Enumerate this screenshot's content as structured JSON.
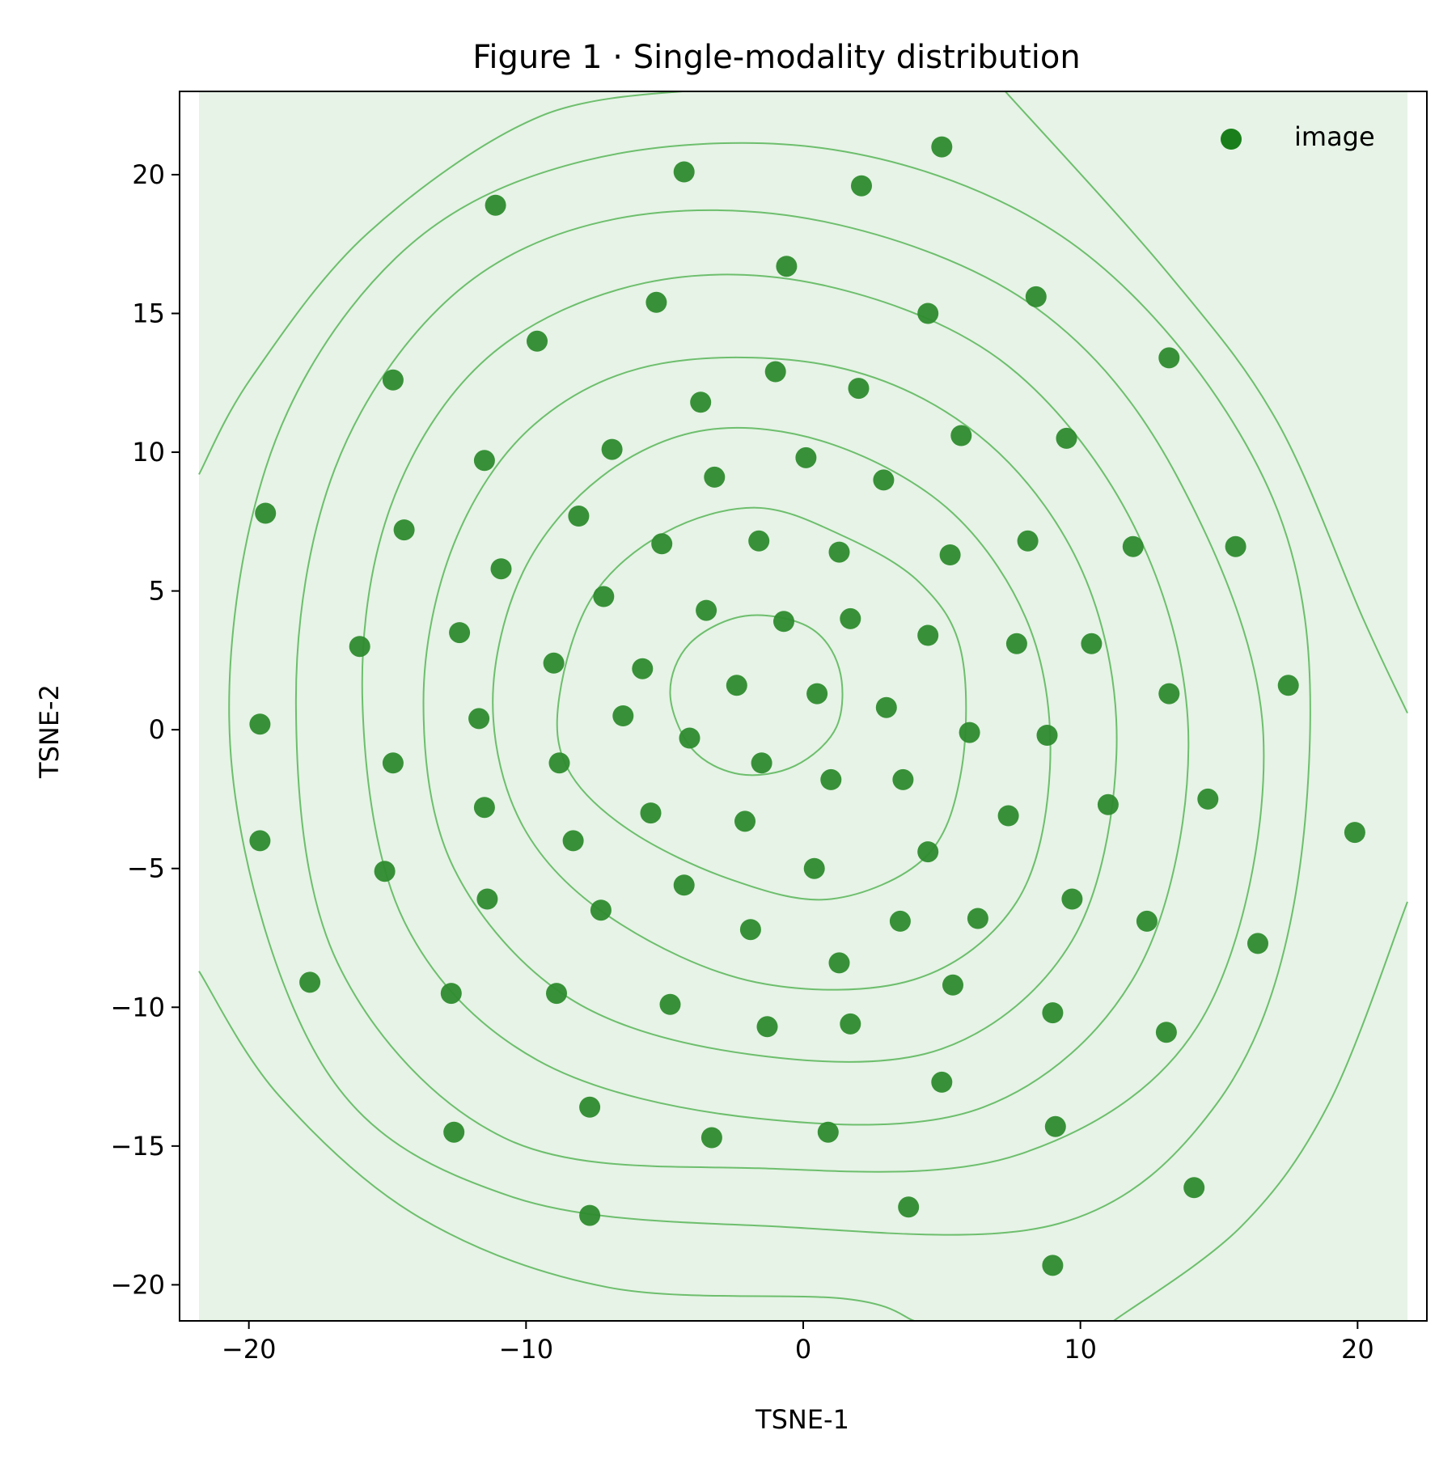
{
  "chart_data": {
    "type": "scatter",
    "title": "Figure 1  ·  Single-modality distribution",
    "xlabel": "TSNE-1",
    "ylabel": "TSNE-2",
    "xlim": [
      -22.5,
      22.5
    ],
    "ylim": [
      -21.3,
      23.0
    ],
    "xticks": [
      -20,
      -10,
      0,
      10,
      20
    ],
    "xtick_labels": [
      "−20",
      "−10",
      "0",
      "10",
      "20"
    ],
    "yticks": [
      -20,
      -15,
      -10,
      -5,
      0,
      5,
      10,
      15,
      20
    ],
    "ytick_labels": [
      "−20",
      "−15",
      "−10",
      "−5",
      "0",
      "5",
      "10",
      "15",
      "20"
    ],
    "grid": false,
    "legend_position": "top-right",
    "density_background": true,
    "density_extent_x": [
      -21.8,
      21.8
    ],
    "colors": {
      "point": "#2e8b2e",
      "legend_marker": "#1a7f1a",
      "density_fill": "#e6f3e6",
      "contour": "#5fb85f"
    },
    "series": [
      {
        "name": "image",
        "points": [
          [
            -19.4,
            7.8
          ],
          [
            -19.6,
            0.2
          ],
          [
            -19.6,
            -4.0
          ],
          [
            -17.8,
            -9.1
          ],
          [
            -16.0,
            3.0
          ],
          [
            -14.8,
            12.6
          ],
          [
            -14.8,
            -1.2
          ],
          [
            -15.1,
            -5.1
          ],
          [
            -14.4,
            7.2
          ],
          [
            -12.7,
            -9.5
          ],
          [
            -12.6,
            -14.5
          ],
          [
            -12.4,
            3.5
          ],
          [
            -11.1,
            18.9
          ],
          [
            -11.5,
            9.7
          ],
          [
            -11.7,
            0.4
          ],
          [
            -11.5,
            -2.8
          ],
          [
            -11.4,
            -6.1
          ],
          [
            -10.9,
            5.8
          ],
          [
            -9.6,
            14.0
          ],
          [
            -9.0,
            2.4
          ],
          [
            -8.8,
            -1.2
          ],
          [
            -8.9,
            -9.5
          ],
          [
            -8.3,
            -4.0
          ],
          [
            -8.1,
            7.7
          ],
          [
            -7.7,
            -13.6
          ],
          [
            -7.7,
            -17.5
          ],
          [
            -7.2,
            4.8
          ],
          [
            -7.3,
            -6.5
          ],
          [
            -6.9,
            10.1
          ],
          [
            -6.5,
            0.5
          ],
          [
            -5.8,
            2.2
          ],
          [
            -5.5,
            -3.0
          ],
          [
            -5.3,
            15.4
          ],
          [
            -5.1,
            6.7
          ],
          [
            -4.8,
            -9.9
          ],
          [
            -4.3,
            20.1
          ],
          [
            -4.3,
            -5.6
          ],
          [
            -4.1,
            -0.3
          ],
          [
            -3.7,
            11.8
          ],
          [
            -3.5,
            4.3
          ],
          [
            -3.2,
            9.1
          ],
          [
            -3.3,
            -14.7
          ],
          [
            -2.4,
            1.6
          ],
          [
            -2.1,
            -3.3
          ],
          [
            -1.9,
            -7.2
          ],
          [
            -1.6,
            6.8
          ],
          [
            -1.5,
            -1.2
          ],
          [
            -1.3,
            -10.7
          ],
          [
            -1.0,
            12.9
          ],
          [
            -0.6,
            16.7
          ],
          [
            -0.7,
            3.9
          ],
          [
            0.1,
            9.8
          ],
          [
            0.4,
            -5.0
          ],
          [
            0.5,
            1.3
          ],
          [
            0.9,
            -14.5
          ],
          [
            1.0,
            -1.8
          ],
          [
            1.3,
            -8.4
          ],
          [
            1.3,
            6.4
          ],
          [
            1.7,
            4.0
          ],
          [
            1.7,
            -10.6
          ],
          [
            2.1,
            19.6
          ],
          [
            2.0,
            12.3
          ],
          [
            2.9,
            9.0
          ],
          [
            3.0,
            0.8
          ],
          [
            3.5,
            -6.9
          ],
          [
            3.6,
            -1.8
          ],
          [
            3.8,
            -17.2
          ],
          [
            4.5,
            15.0
          ],
          [
            4.5,
            3.4
          ],
          [
            4.5,
            -4.4
          ],
          [
            5.0,
            21.0
          ],
          [
            5.0,
            -12.7
          ],
          [
            5.3,
            6.3
          ],
          [
            5.4,
            -9.2
          ],
          [
            5.7,
            10.6
          ],
          [
            6.0,
            -0.1
          ],
          [
            6.3,
            -6.8
          ],
          [
            7.4,
            -3.1
          ],
          [
            7.7,
            3.1
          ],
          [
            8.1,
            6.8
          ],
          [
            8.4,
            15.6
          ],
          [
            8.8,
            -0.2
          ],
          [
            9.0,
            -10.2
          ],
          [
            9.1,
            -14.3
          ],
          [
            9.5,
            10.5
          ],
          [
            9.0,
            -19.3
          ],
          [
            9.7,
            -6.1
          ],
          [
            10.4,
            3.1
          ],
          [
            11.0,
            -2.7
          ],
          [
            11.9,
            6.6
          ],
          [
            12.4,
            -6.9
          ],
          [
            13.1,
            -10.9
          ],
          [
            13.2,
            13.4
          ],
          [
            13.2,
            1.3
          ],
          [
            14.1,
            -16.5
          ],
          [
            14.6,
            -2.5
          ],
          [
            15.6,
            6.6
          ],
          [
            16.4,
            -7.7
          ],
          [
            17.5,
            1.6
          ],
          [
            19.9,
            -3.7
          ]
        ]
      }
    ],
    "contours": [
      [
        [
          -4.8,
          1.3
        ],
        [
          -4.1,
          3.1
        ],
        [
          -2.1,
          4.1
        ],
        [
          0.2,
          3.7
        ],
        [
          1.3,
          2.2
        ],
        [
          1.2,
          0.1
        ],
        [
          -0.3,
          -1.3
        ],
        [
          -2.3,
          -1.6
        ],
        [
          -4.0,
          -0.7
        ]
      ],
      [
        [
          -8.8,
          1.2
        ],
        [
          -7.6,
          4.8
        ],
        [
          -5.0,
          7.1
        ],
        [
          -1.7,
          8.0
        ],
        [
          1.4,
          7.0
        ],
        [
          4.2,
          5.3
        ],
        [
          5.7,
          2.8
        ],
        [
          5.7,
          -1.5
        ],
        [
          4.4,
          -4.6
        ],
        [
          1.0,
          -6.1
        ],
        [
          -2.6,
          -5.4
        ],
        [
          -6.3,
          -3.6
        ],
        [
          -8.5,
          -1.4
        ]
      ],
      [
        [
          -11.2,
          1.0
        ],
        [
          -10.1,
          5.7
        ],
        [
          -7.3,
          9.1
        ],
        [
          -3.5,
          10.8
        ],
        [
          1.0,
          10.3
        ],
        [
          5.4,
          7.8
        ],
        [
          8.2,
          3.6
        ],
        [
          8.9,
          -1.4
        ],
        [
          7.7,
          -6.2
        ],
        [
          4.0,
          -9.0
        ],
        [
          -1.7,
          -9.1
        ],
        [
          -6.9,
          -6.8
        ],
        [
          -10.1,
          -3.5
        ]
      ],
      [
        [
          -13.7,
          1.0
        ],
        [
          -12.6,
          6.7
        ],
        [
          -9.7,
          11.0
        ],
        [
          -5.1,
          13.2
        ],
        [
          1.5,
          13.0
        ],
        [
          6.7,
          10.3
        ],
        [
          10.2,
          5.4
        ],
        [
          11.3,
          -0.9
        ],
        [
          9.7,
          -7.6
        ],
        [
          5.0,
          -11.5
        ],
        [
          -1.9,
          -11.7
        ],
        [
          -8.4,
          -9.7
        ],
        [
          -12.6,
          -5.0
        ]
      ],
      [
        [
          -15.9,
          0.9
        ],
        [
          -14.9,
          8.0
        ],
        [
          -11.4,
          13.4
        ],
        [
          -5.7,
          16.1
        ],
        [
          0.8,
          16.0
        ],
        [
          7.4,
          13.1
        ],
        [
          12.1,
          7.0
        ],
        [
          13.9,
          -0.6
        ],
        [
          12.0,
          -8.8
        ],
        [
          6.5,
          -13.6
        ],
        [
          -1.7,
          -14.0
        ],
        [
          -9.6,
          -11.9
        ],
        [
          -14.4,
          -6.9
        ]
      ],
      [
        [
          -18.3,
          0.9
        ],
        [
          -16.9,
          9.4
        ],
        [
          -12.7,
          15.6
        ],
        [
          -6.8,
          18.4
        ],
        [
          0.8,
          18.3
        ],
        [
          8.4,
          15.2
        ],
        [
          13.5,
          9.1
        ],
        [
          16.6,
          -0.2
        ],
        [
          14.4,
          -10.4
        ],
        [
          7.8,
          -15.3
        ],
        [
          -1.6,
          -15.8
        ],
        [
          -10.8,
          -14.7
        ],
        [
          -16.8,
          -8.4
        ]
      ],
      [
        [
          -20.6,
          -1.5
        ],
        [
          -19.4,
          9.4
        ],
        [
          -14.7,
          17.0
        ],
        [
          -7.9,
          20.5
        ],
        [
          1.1,
          20.9
        ],
        [
          9.3,
          17.8
        ],
        [
          15.3,
          11.4
        ],
        [
          18.1,
          4.0
        ],
        [
          17.7,
          -6.3
        ],
        [
          14.9,
          -13.5
        ],
        [
          9.2,
          -17.8
        ],
        [
          -1.0,
          -17.9
        ],
        [
          -10.6,
          -16.8
        ],
        [
          -17.2,
          -12.3
        ]
      ],
      {
        "open": true,
        "pts": [
          [
            -21.8,
            9.2
          ],
          [
            -19.9,
            12.7
          ],
          [
            -15.7,
            17.9
          ],
          [
            -9.5,
            22.1
          ],
          [
            -3.3,
            23.1
          ]
        ]
      },
      {
        "open": true,
        "pts": [
          [
            7.2,
            23.1
          ],
          [
            13.2,
            16.4
          ],
          [
            17.1,
            11.1
          ],
          [
            20.2,
            4.0
          ],
          [
            21.8,
            0.6
          ]
        ]
      },
      {
        "open": true,
        "pts": [
          [
            -21.8,
            -8.7
          ],
          [
            -18.9,
            -13.2
          ],
          [
            -13.8,
            -17.6
          ],
          [
            -7.0,
            -20.1
          ],
          [
            1.5,
            -20.5
          ],
          [
            4.0,
            -21.3
          ]
        ]
      },
      {
        "open": true,
        "pts": [
          [
            11.2,
            -21.3
          ],
          [
            15.8,
            -17.9
          ],
          [
            19.0,
            -13.4
          ],
          [
            21.8,
            -6.2
          ]
        ]
      }
    ]
  }
}
